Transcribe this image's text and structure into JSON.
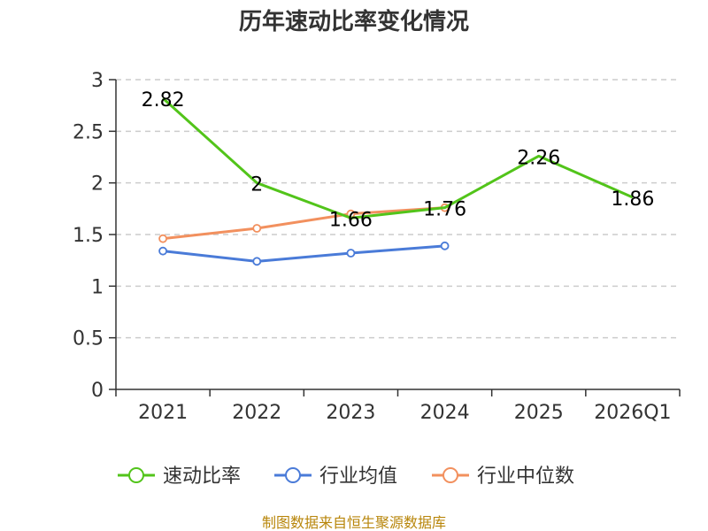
{
  "chart_data": {
    "type": "line",
    "title": "历年速动比率变化情况",
    "categories": [
      "2021",
      "2022",
      "2023",
      "2024",
      "2025",
      "2026Q1"
    ],
    "ylim": [
      0,
      3
    ],
    "yticks": [
      "0",
      "0.5",
      "1",
      "1.5",
      "2",
      "2.5",
      "3"
    ],
    "grid": true,
    "legend_position": "bottom",
    "series": [
      {
        "name": "速动比率",
        "color": "#52c41a",
        "values": [
          2.82,
          2.0,
          1.66,
          1.76,
          2.26,
          1.86
        ],
        "labels": [
          "2.82",
          "2",
          "1.66",
          "1.76",
          "2.26",
          "1.86"
        ],
        "markers": false
      },
      {
        "name": "行业均值",
        "color": "#4a7bd8",
        "values": [
          1.34,
          1.24,
          1.32,
          1.39,
          null,
          null
        ],
        "markers": true
      },
      {
        "name": "行业中位数",
        "color": "#f2905e",
        "values": [
          1.46,
          1.56,
          1.7,
          1.76,
          null,
          null
        ],
        "markers": true
      }
    ],
    "source": "制图数据来自恒生聚源数据库"
  }
}
